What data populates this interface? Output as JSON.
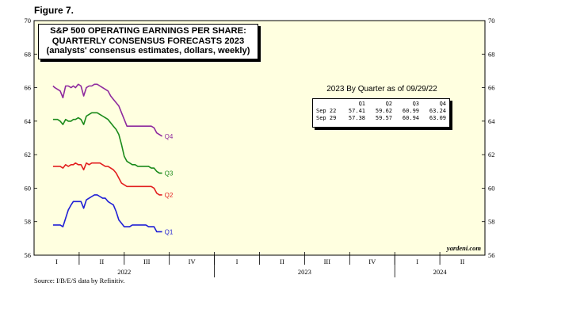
{
  "figure_label": "Figure 7.",
  "source": "Source: I/B/E/S data by Refinitiv.",
  "watermark": "yardeni.com",
  "colors": {
    "plot_bg": "#ffffe0",
    "Q1": "#1f1fd6",
    "Q2": "#e21f1f",
    "Q3": "#1a8a1a",
    "Q4": "#8e2a9e"
  },
  "table": {
    "title": "2023 By Quarter as of 09/29/22",
    "headers": [
      "Q1",
      "Q2",
      "Q3",
      "Q4"
    ],
    "rows": [
      {
        "label": "Sep 22",
        "values": [
          "57.41",
          "59.62",
          "60.99",
          "63.24"
        ]
      },
      {
        "label": "Sep 29",
        "values": [
          "57.38",
          "59.57",
          "60.94",
          "63.09"
        ]
      }
    ]
  },
  "chart_data": {
    "type": "line",
    "title": [
      "S&P 500 OPERATING EARNINGS PER SHARE:",
      "QUARTERLY CONSENSUS FORECASTS 2023",
      "(analysts' consensus estimates, dollars, weekly)"
    ],
    "ylim": [
      56,
      70
    ],
    "y_ticks": [
      56,
      58,
      60,
      62,
      64,
      66,
      68,
      70
    ],
    "xlim": [
      0,
      10
    ],
    "quarter_ticks": [
      "I",
      "II",
      "III",
      "IV",
      "I",
      "II",
      "III",
      "IV",
      "I",
      "II"
    ],
    "year_labels": [
      {
        "label": "2022",
        "center": 2
      },
      {
        "label": "2023",
        "center": 6
      },
      {
        "label": "2024",
        "center": 9
      }
    ],
    "grid": false,
    "series": [
      {
        "name": "Q4",
        "x": [
          0.42,
          0.46,
          0.52,
          0.58,
          0.64,
          0.7,
          0.76,
          0.82,
          0.87,
          0.92,
          0.98,
          1.04,
          1.1,
          1.16,
          1.22,
          1.28,
          1.34,
          1.4,
          1.46,
          1.52,
          1.58,
          1.64,
          1.7,
          1.76,
          1.82,
          1.88,
          1.94,
          2.0,
          2.06,
          2.12,
          2.18,
          2.24,
          2.3,
          2.36,
          2.42,
          2.48,
          2.54,
          2.6,
          2.66,
          2.72,
          2.78,
          2.84
        ],
        "values": [
          66.1,
          66.0,
          65.9,
          65.8,
          65.4,
          66.1,
          66.1,
          66.0,
          66.1,
          66.0,
          66.2,
          66.1,
          65.5,
          66.0,
          66.1,
          66.1,
          66.2,
          66.2,
          66.1,
          66.0,
          65.9,
          65.8,
          65.5,
          65.3,
          65.1,
          64.9,
          64.5,
          64.1,
          63.7,
          63.7,
          63.7,
          63.7,
          63.7,
          63.7,
          63.7,
          63.7,
          63.7,
          63.7,
          63.6,
          63.3,
          63.2,
          63.1
        ]
      },
      {
        "name": "Q3",
        "x": [
          0.42,
          0.46,
          0.52,
          0.58,
          0.64,
          0.7,
          0.76,
          0.82,
          0.87,
          0.92,
          0.98,
          1.04,
          1.1,
          1.16,
          1.22,
          1.28,
          1.34,
          1.4,
          1.46,
          1.52,
          1.58,
          1.64,
          1.7,
          1.76,
          1.82,
          1.88,
          1.94,
          2.0,
          2.06,
          2.12,
          2.18,
          2.24,
          2.3,
          2.36,
          2.42,
          2.48,
          2.54,
          2.6,
          2.66,
          2.72,
          2.78,
          2.84
        ],
        "values": [
          64.1,
          64.1,
          64.1,
          64.0,
          63.8,
          64.1,
          64.0,
          64.0,
          64.1,
          64.1,
          64.2,
          64.1,
          63.8,
          64.3,
          64.4,
          64.5,
          64.5,
          64.5,
          64.4,
          64.3,
          64.2,
          64.1,
          63.9,
          63.7,
          63.5,
          63.2,
          62.6,
          61.9,
          61.6,
          61.5,
          61.4,
          61.4,
          61.3,
          61.3,
          61.3,
          61.3,
          61.3,
          61.2,
          61.2,
          61.0,
          60.9,
          60.9
        ]
      },
      {
        "name": "Q2",
        "x": [
          0.42,
          0.46,
          0.52,
          0.58,
          0.64,
          0.7,
          0.76,
          0.82,
          0.87,
          0.92,
          0.98,
          1.04,
          1.1,
          1.16,
          1.22,
          1.28,
          1.34,
          1.4,
          1.46,
          1.52,
          1.58,
          1.64,
          1.7,
          1.76,
          1.82,
          1.88,
          1.94,
          2.0,
          2.06,
          2.12,
          2.18,
          2.24,
          2.3,
          2.36,
          2.42,
          2.48,
          2.54,
          2.6,
          2.66,
          2.72,
          2.78,
          2.84
        ],
        "values": [
          61.3,
          61.3,
          61.3,
          61.3,
          61.2,
          61.4,
          61.3,
          61.4,
          61.4,
          61.5,
          61.4,
          61.4,
          61.1,
          61.5,
          61.4,
          61.5,
          61.5,
          61.5,
          61.5,
          61.4,
          61.3,
          61.3,
          61.2,
          61.1,
          60.9,
          60.6,
          60.3,
          60.2,
          60.1,
          60.1,
          60.1,
          60.1,
          60.1,
          60.1,
          60.1,
          60.1,
          60.1,
          60.1,
          60.0,
          59.7,
          59.6,
          59.6
        ]
      },
      {
        "name": "Q1",
        "x": [
          0.42,
          0.46,
          0.52,
          0.58,
          0.64,
          0.7,
          0.76,
          0.82,
          0.87,
          0.92,
          0.98,
          1.04,
          1.1,
          1.16,
          1.22,
          1.28,
          1.34,
          1.4,
          1.46,
          1.52,
          1.58,
          1.64,
          1.7,
          1.76,
          1.82,
          1.88,
          1.94,
          2.0,
          2.06,
          2.12,
          2.18,
          2.24,
          2.3,
          2.36,
          2.42,
          2.48,
          2.54,
          2.6,
          2.66,
          2.72,
          2.78,
          2.84
        ],
        "values": [
          57.8,
          57.8,
          57.8,
          57.8,
          57.7,
          58.2,
          58.7,
          59.0,
          59.2,
          59.2,
          59.2,
          59.2,
          58.8,
          59.3,
          59.4,
          59.5,
          59.6,
          59.6,
          59.5,
          59.4,
          59.4,
          59.2,
          59.1,
          59.0,
          58.6,
          58.1,
          57.9,
          57.7,
          57.7,
          57.7,
          57.8,
          57.8,
          57.8,
          57.8,
          57.8,
          57.8,
          57.7,
          57.7,
          57.7,
          57.4,
          57.4,
          57.4
        ]
      }
    ]
  }
}
